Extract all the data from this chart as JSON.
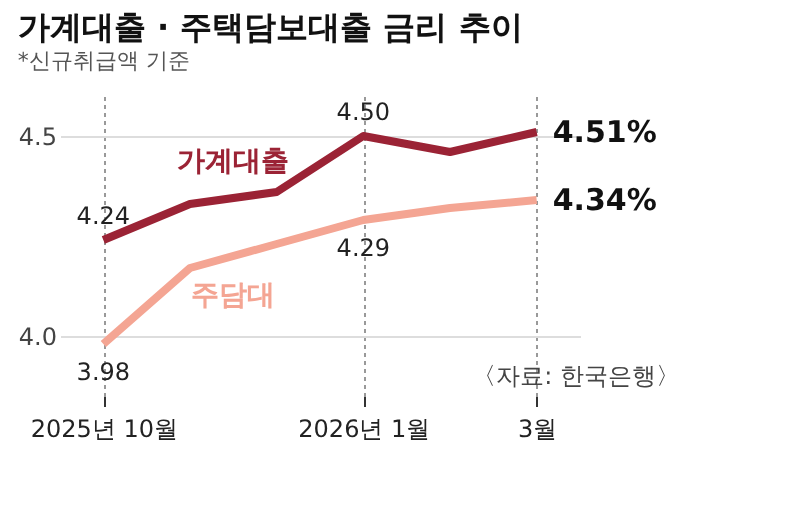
{
  "chart_data": {
    "type": "line",
    "title": "가계대출 · 주택담보대출 금리 추이",
    "subtitle": "*신규취급액 기준",
    "categories": [
      "2025년 10월",
      null,
      null,
      "2026년 1월",
      null,
      "3월"
    ],
    "series": [
      {
        "name": "가계대출",
        "color": "#9b2335",
        "values": [
          4.24,
          4.33,
          4.36,
          4.5,
          4.46,
          4.51
        ],
        "value_labels": [
          "4.24",
          null,
          null,
          "4.50",
          null,
          "4.51%"
        ]
      },
      {
        "name": "주담대",
        "color": "#f4a593",
        "values": [
          3.98,
          4.17,
          4.23,
          4.29,
          4.32,
          4.34
        ],
        "value_labels": [
          "3.98",
          null,
          null,
          "4.29",
          null,
          "4.34%"
        ]
      }
    ],
    "ylim": [
      3.85,
      4.6
    ],
    "yticks": [
      {
        "value": 4.0,
        "label": "4.0"
      },
      {
        "value": 4.5,
        "label": "4.5"
      }
    ],
    "grid": true,
    "legend": false,
    "annotations": [
      "〈자료: 한국은행〉"
    ]
  }
}
